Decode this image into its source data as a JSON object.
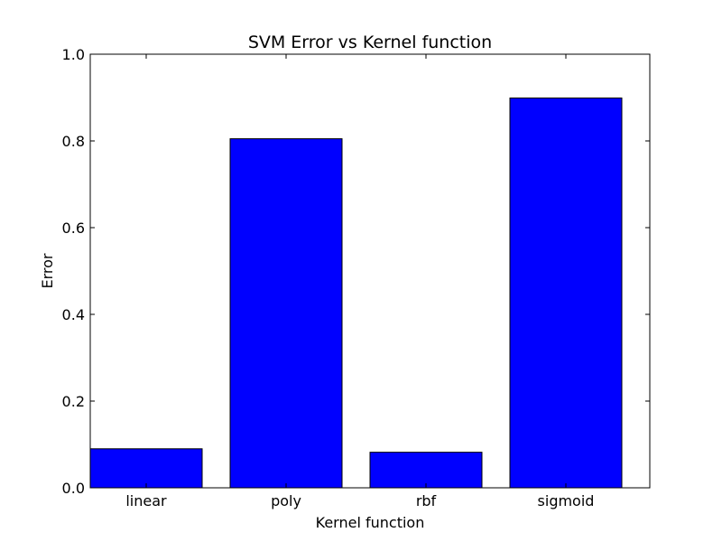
{
  "chart_data": {
    "type": "bar",
    "title": "SVM Error vs Kernel function",
    "xlabel": "Kernel function",
    "ylabel": "Error",
    "categories": [
      "linear",
      "poly",
      "rbf",
      "sigmoid"
    ],
    "values": [
      0.09,
      0.805,
      0.082,
      0.899
    ],
    "ylim": [
      0.0,
      1.0
    ],
    "yticks": [
      0.0,
      0.2,
      0.4,
      0.6,
      0.8,
      1.0
    ],
    "ytick_labels": [
      "0.0",
      "0.2",
      "0.4",
      "0.6",
      "0.8",
      "1.0"
    ],
    "bar_color": "#0000ff",
    "edge_color": "#000000",
    "grid": false,
    "legend": "none"
  }
}
